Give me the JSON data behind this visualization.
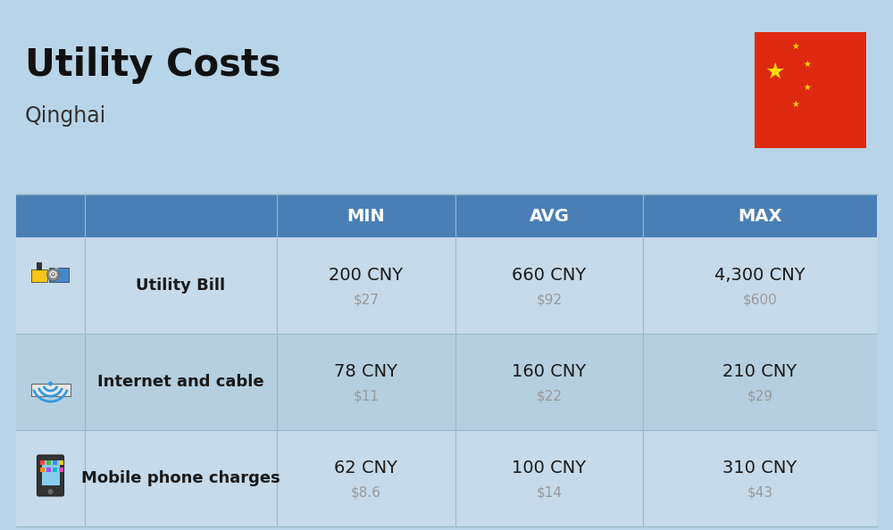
{
  "title": "Utility Costs",
  "subtitle": "Qinghai",
  "background_color": "#b8d4e8",
  "header_bg_color": "#4a7fb5",
  "header_text_color": "#ffffff",
  "row_bg_colors": [
    "#c5daea",
    "#b5cfe0",
    "#c5daea"
  ],
  "cell_text_color": "#1a1a1a",
  "usd_text_color": "#999999",
  "label_text_color": "#1a1a1a",
  "col_headers": [
    "MIN",
    "AVG",
    "MAX"
  ],
  "rows": [
    {
      "label": "Utility Bill",
      "values": [
        [
          "200 CNY",
          "$27"
        ],
        [
          "660 CNY",
          "$92"
        ],
        [
          "4,300 CNY",
          "$600"
        ]
      ]
    },
    {
      "label": "Internet and cable",
      "values": [
        [
          "78 CNY",
          "$11"
        ],
        [
          "160 CNY",
          "$22"
        ],
        [
          "210 CNY",
          "$29"
        ]
      ]
    },
    {
      "label": "Mobile phone charges",
      "values": [
        [
          "62 CNY",
          "$8.6"
        ],
        [
          "100 CNY",
          "$14"
        ],
        [
          "310 CNY",
          "$43"
        ]
      ]
    }
  ],
  "flag_red": "#de2910",
  "flag_yellow": "#ffde00",
  "divider_color": "#9ab8cc",
  "header_divider_color": "#7a9fb8"
}
